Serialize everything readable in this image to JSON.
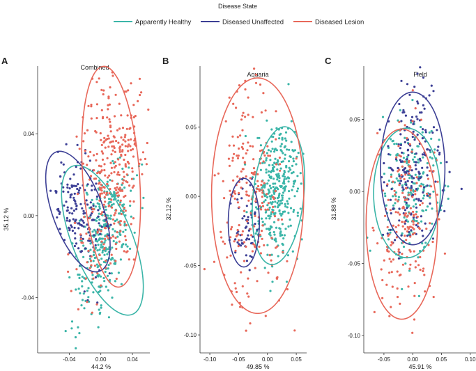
{
  "legend": {
    "title": "Disease State",
    "items": [
      {
        "label": "Apparently Healthy",
        "color": "#3bb5a8"
      },
      {
        "label": "Diseased Unaffected",
        "color": "#3c3f95"
      },
      {
        "label": "Diseased Lesion",
        "color": "#e8685a"
      }
    ]
  },
  "chart_data": [
    {
      "type": "scatter",
      "panel": "A",
      "title": "Combined",
      "xlabel": "44.2 %",
      "ylabel": "35.12 %",
      "xlim": [
        -0.08,
        0.062
      ],
      "ylim": [
        -0.067,
        0.073
      ],
      "xticks": [
        -0.04,
        0.0,
        0.04
      ],
      "xtick_labels": [
        "-0.04",
        "0.00",
        "0.04"
      ],
      "yticks": [
        -0.04,
        0.0,
        0.04
      ],
      "ytick_labels": [
        "-0.04",
        "0.00",
        "0.04"
      ],
      "groups": [
        {
          "name": "Apparently Healthy",
          "n": 320,
          "mean": [
            0.003,
            -0.012
          ],
          "sd": [
            0.018,
            0.02
          ],
          "rho": 0.55
        },
        {
          "name": "Diseased Unaffected",
          "n": 170,
          "mean": [
            -0.028,
            0.003
          ],
          "sd": [
            0.016,
            0.013
          ],
          "rho": -0.3
        },
        {
          "name": "Diseased Lesion",
          "n": 340,
          "mean": [
            0.012,
            0.02
          ],
          "sd": [
            0.02,
            0.027
          ],
          "rho": 0.25
        }
      ],
      "ellipses": [
        {
          "group": "Apparently Healthy",
          "center": [
            0.002,
            -0.012
          ],
          "radii": [
            0.038,
            0.039
          ],
          "angle": -22
        },
        {
          "group": "Diseased Unaffected",
          "center": [
            -0.029,
            0.002
          ],
          "radii": [
            0.032,
            0.031
          ],
          "angle": -20
        },
        {
          "group": "Diseased Lesion",
          "center": [
            0.013,
            0.019
          ],
          "radii": [
            0.036,
            0.054
          ],
          "angle": -4
        }
      ]
    },
    {
      "type": "scatter",
      "panel": "B",
      "title": "Aquaria",
      "xlabel": "49.85 %",
      "ylabel": "32.12 %",
      "xlim": [
        -0.117,
        0.068
      ],
      "ylim": [
        -0.113,
        0.094
      ],
      "xticks": [
        -0.1,
        -0.05,
        0.0,
        0.05
      ],
      "xtick_labels": [
        "-0.10",
        "-0.05",
        "0.00",
        "0.05"
      ],
      "yticks": [
        -0.1,
        -0.05,
        0.0,
        0.05
      ],
      "ytick_labels": [
        "-0.10",
        "-0.05",
        "0.00",
        "0.05"
      ],
      "groups": [
        {
          "name": "Apparently Healthy",
          "n": 330,
          "mean": [
            0.018,
            0.003
          ],
          "sd": [
            0.02,
            0.024
          ],
          "rho": 0.2
        },
        {
          "name": "Diseased Unaffected",
          "n": 60,
          "mean": [
            -0.038,
            -0.02
          ],
          "sd": [
            0.012,
            0.014
          ],
          "rho": 0.1
        },
        {
          "name": "Diseased Lesion",
          "n": 230,
          "mean": [
            -0.03,
            0.005
          ],
          "sd": [
            0.03,
            0.04
          ],
          "rho": -0.2
        }
      ],
      "ellipses": [
        {
          "group": "Apparently Healthy",
          "center": [
            0.019,
            0.0005
          ],
          "radii": [
            0.044,
            0.05
          ],
          "angle": 6
        },
        {
          "group": "Diseased Unaffected",
          "center": [
            -0.041,
            -0.019
          ],
          "radii": [
            0.027,
            0.032
          ],
          "angle": 0
        },
        {
          "group": "Diseased Lesion",
          "center": [
            -0.017,
            0.0005
          ],
          "radii": [
            0.08,
            0.085
          ],
          "angle": 0
        }
      ]
    },
    {
      "type": "scatter",
      "panel": "C",
      "title": "Field",
      "xlabel": "45.91 %",
      "ylabel": "31.88 %",
      "xlim": [
        -0.085,
        0.11
      ],
      "ylim": [
        -0.112,
        0.087
      ],
      "xticks": [
        -0.05,
        0.0,
        0.05,
        0.1
      ],
      "xtick_labels": [
        "-0.05",
        "0.00",
        "0.05",
        "0.10"
      ],
      "yticks": [
        -0.1,
        -0.05,
        0.0,
        0.05
      ],
      "ytick_labels": [
        "-0.10",
        "-0.05",
        "0.00",
        "0.05"
      ],
      "groups": [
        {
          "name": "Apparently Healthy",
          "n": 200,
          "mean": [
            -0.005,
            0.003
          ],
          "sd": [
            0.025,
            0.025
          ],
          "rho": 0.15
        },
        {
          "name": "Diseased Unaffected",
          "n": 200,
          "mean": [
            0.0,
            0.016
          ],
          "sd": [
            0.024,
            0.024
          ],
          "rho": 0.0
        },
        {
          "name": "Diseased Lesion",
          "n": 190,
          "mean": [
            -0.012,
            -0.022
          ],
          "sd": [
            0.028,
            0.032
          ],
          "rho": 0.05
        }
      ],
      "ellipses": [
        {
          "group": "Apparently Healthy",
          "center": [
            -0.01,
            -0.001
          ],
          "radii": [
            0.058,
            0.045
          ],
          "angle": 0
        },
        {
          "group": "Diseased Unaffected",
          "center": [
            0.0,
            0.016
          ],
          "radii": [
            0.056,
            0.053
          ],
          "angle": 0
        },
        {
          "group": "Diseased Lesion",
          "center": [
            -0.019,
            -0.0226
          ],
          "radii": [
            0.062,
            0.066
          ],
          "angle": 0
        }
      ]
    }
  ]
}
